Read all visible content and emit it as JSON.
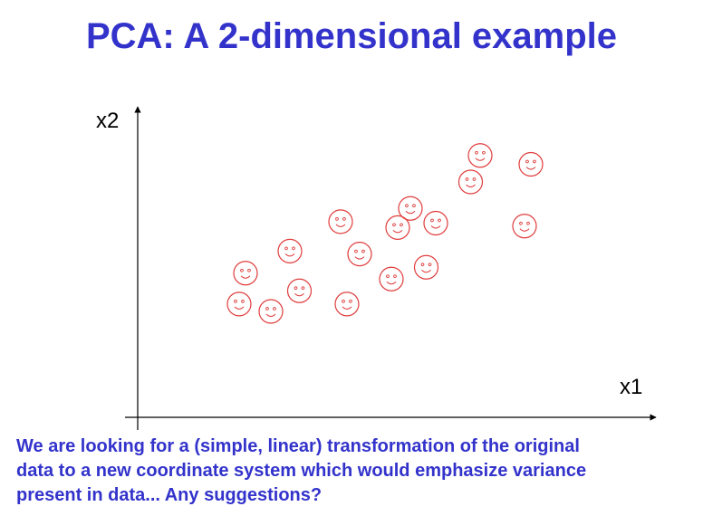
{
  "slide": {
    "title": "PCA: A 2-dimensional example",
    "caption_lines": [
      "We are looking for a (simple, linear) transformation of the original",
      "data to a new coordinate system which would emphasize variance",
      "present in data... Any suggestions?"
    ]
  },
  "colors": {
    "title": "#3333cc",
    "caption": "#3333cc",
    "marker": "#e03c3c",
    "axis": "#000000"
  },
  "chart_data": {
    "type": "scatter",
    "marker_icon": "smiley-face-icon",
    "xlabel": "x1",
    "ylabel": "x2",
    "xlim": [
      0,
      10
    ],
    "ylim": [
      0,
      10
    ],
    "grid": false,
    "points": [
      {
        "x": 1.6,
        "y": 3.85
      },
      {
        "x": 2.1,
        "y": 3.6
      },
      {
        "x": 1.7,
        "y": 4.9
      },
      {
        "x": 2.55,
        "y": 4.3
      },
      {
        "x": 2.4,
        "y": 5.65
      },
      {
        "x": 3.3,
        "y": 3.85
      },
      {
        "x": 3.2,
        "y": 6.65
      },
      {
        "x": 3.5,
        "y": 5.55
      },
      {
        "x": 4.0,
        "y": 4.7
      },
      {
        "x": 4.55,
        "y": 5.1
      },
      {
        "x": 4.1,
        "y": 6.45
      },
      {
        "x": 4.3,
        "y": 7.1
      },
      {
        "x": 4.7,
        "y": 6.6
      },
      {
        "x": 5.25,
        "y": 8.0
      },
      {
        "x": 5.4,
        "y": 8.9
      },
      {
        "x": 6.1,
        "y": 6.5
      },
      {
        "x": 6.2,
        "y": 8.6
      }
    ]
  }
}
